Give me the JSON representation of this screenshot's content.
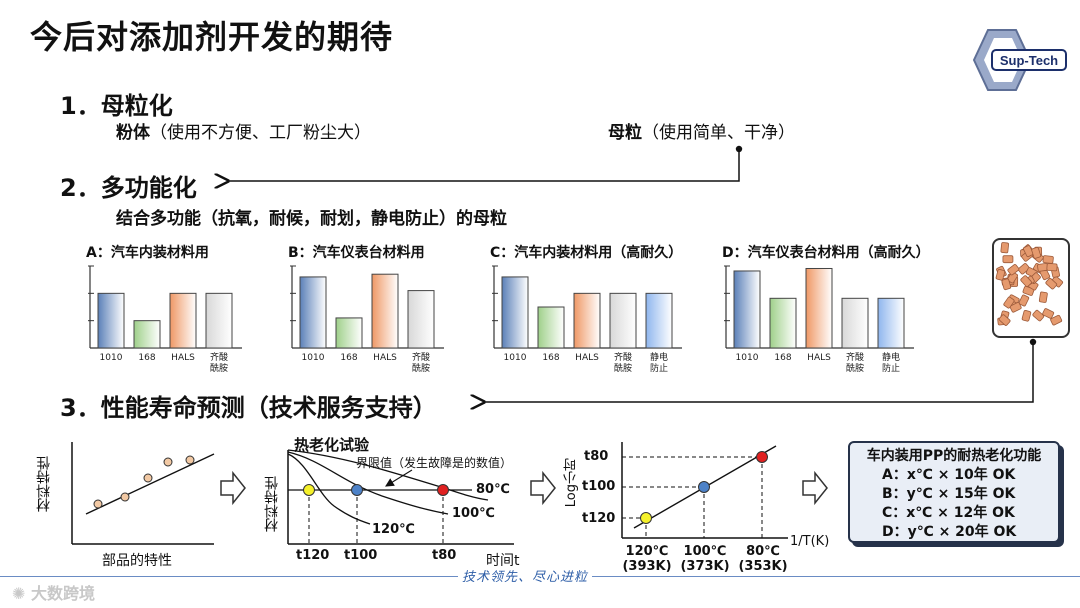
{
  "page": {
    "title": "今后对添加剂开发的期待",
    "logo_text": "Sup-Tech",
    "watermark": "大数跨境",
    "slogan": "技术领先、尽心进粒"
  },
  "section1": {
    "heading": "1．母粒化",
    "left_bold": "粉体",
    "left_rest": "（使用不方便、工厂粉尘大）",
    "right_bold": "母粒",
    "right_rest": "（使用简单、干净）"
  },
  "section2": {
    "heading": "2．多功能化",
    "subtitle": "结合多功能（抗氧，耐候，耐划，静电防止）的母粒"
  },
  "section3": {
    "heading": "3．性能寿命预测（技术服务支持）"
  },
  "chart_data": [
    {
      "type": "bar",
      "title": "A：汽车内装材料用",
      "categories": [
        "1010",
        "168",
        "HALS",
        "齐酸\n酰胺"
      ],
      "values": [
        2,
        1,
        2,
        2
      ],
      "ylim": [
        0,
        3
      ]
    },
    {
      "type": "bar",
      "title": "B：汽车仪表台材料用",
      "categories": [
        "1010",
        "168",
        "HALS",
        "齐酸\n酰胺"
      ],
      "values": [
        2.6,
        1.1,
        2.7,
        2.1
      ],
      "ylim": [
        0,
        3
      ]
    },
    {
      "type": "bar",
      "title": "C：汽车内装材料用（高耐久）",
      "categories": [
        "1010",
        "168",
        "HALS",
        "齐酸\n酰胺",
        "静电\n防止"
      ],
      "values": [
        2.6,
        1.5,
        2,
        2,
        2
      ],
      "ylim": [
        0,
        3
      ]
    },
    {
      "type": "bar",
      "title": "D：汽车仪表台材料用（高耐久）",
      "categories": [
        "1010",
        "168",
        "HALS",
        "齐酸\n酰胺",
        "静电\n防止"
      ],
      "values": [
        3.1,
        2,
        3.2,
        2,
        2
      ],
      "ylim": [
        0,
        3.3
      ]
    }
  ],
  "plot1": {
    "ylabel": "材料特性",
    "xlabel": "部品的特性"
  },
  "plot2": {
    "title": "热老化试验",
    "limit_label": "界限值（发生故障是的数值）",
    "ylabel": "材料特性",
    "xlabel": "时间t",
    "curves": [
      "80℃",
      "100℃",
      "120℃"
    ],
    "ticks": [
      "t120",
      "t100",
      "t80"
    ]
  },
  "plot3": {
    "ylabel": "Log小时",
    "xlabel": "1/T(K)",
    "yticks": [
      "t80",
      "t100",
      "t120"
    ],
    "xticks": [
      {
        "top": "120℃",
        "bottom": "(393K)"
      },
      {
        "top": "100℃",
        "bottom": "(373K)"
      },
      {
        "top": "80℃",
        "bottom": "(353K)"
      }
    ]
  },
  "panel": {
    "title": "车内装用PP的耐热老化功能",
    "lines": [
      "A：x℃ × 10年 OK",
      "B：y℃ × 15年 OK",
      "C：x℃ × 12年 OK",
      "D：y℃ × 20年 OK"
    ]
  },
  "colors": {
    "blue": "#5b80b8",
    "green": "#9fd08a",
    "orange": "#ef9866",
    "gray": "#d8d8d8",
    "lightblue": "#8fb6ee"
  }
}
